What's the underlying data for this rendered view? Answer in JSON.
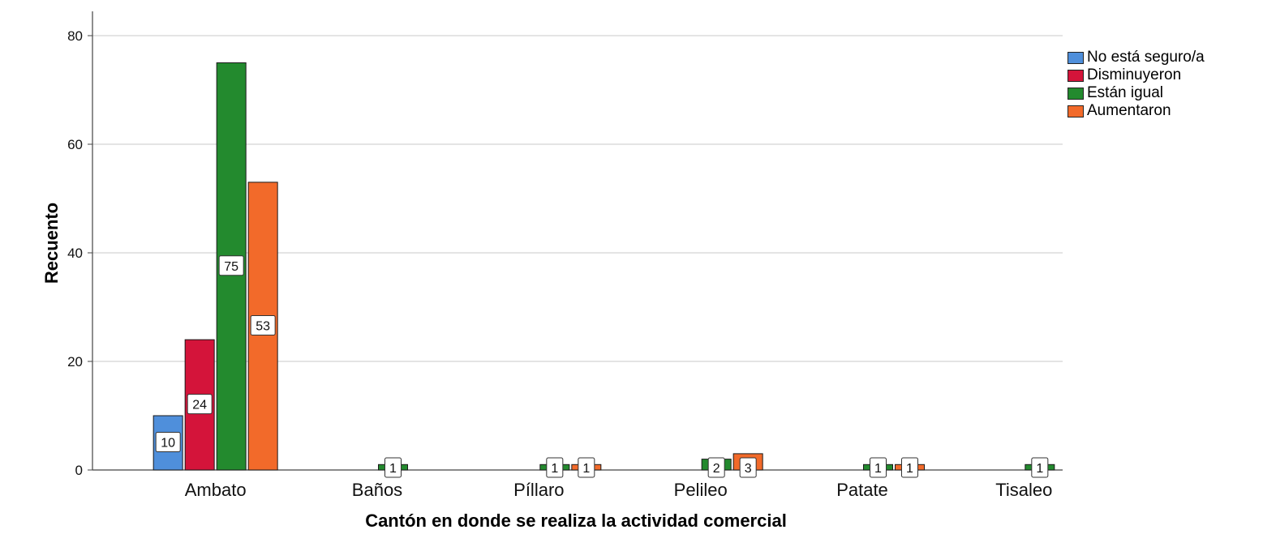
{
  "chart_data": {
    "type": "bar",
    "xlabel": "Cantón en donde se realiza la actividad comercial",
    "ylabel": "Recuento",
    "ylim": [
      0,
      80
    ],
    "yticks": [
      0,
      20,
      40,
      60,
      80
    ],
    "grid": true,
    "legend_position": "right",
    "categories": [
      "Ambato",
      "Baños",
      "Píllaro",
      "Pelileo",
      "Patate",
      "Tisaleo"
    ],
    "series": [
      {
        "name": "No está seguro/a",
        "color": "#4f8fdb",
        "values": [
          10,
          0,
          0,
          0,
          0,
          0
        ]
      },
      {
        "name": "Disminuyeron",
        "color": "#d4143a",
        "values": [
          24,
          0,
          0,
          0,
          0,
          0
        ]
      },
      {
        "name": "Están igual",
        "color": "#238a2e",
        "values": [
          75,
          1,
          1,
          2,
          1,
          1
        ]
      },
      {
        "name": "Aumentaron",
        "color": "#f26a2a",
        "values": [
          53,
          0,
          1,
          3,
          1,
          0
        ]
      }
    ]
  }
}
